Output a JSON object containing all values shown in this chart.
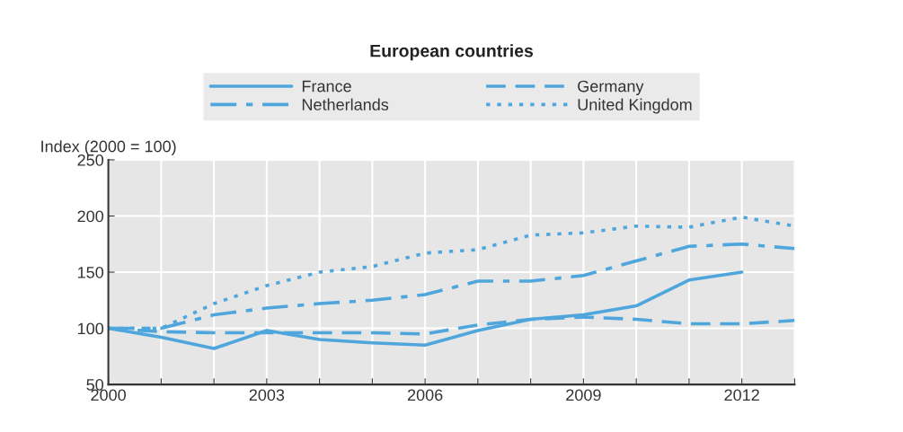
{
  "chart_data": {
    "type": "line",
    "title": "European countries",
    "ylabel": "Index (2000 = 100)",
    "x": [
      2000,
      2001,
      2002,
      2003,
      2004,
      2005,
      2006,
      2007,
      2008,
      2009,
      2010,
      2011,
      2012,
      2013
    ],
    "series": [
      {
        "name": "France",
        "color": "#4ea6dc",
        "line_style": "solid",
        "values": [
          100,
          92,
          82,
          98,
          90,
          87,
          85,
          98,
          108,
          112,
          120,
          143,
          150,
          null
        ]
      },
      {
        "name": "Germany",
        "color": "#4ea6dc",
        "line_style": "dashed",
        "values": [
          100,
          97,
          96,
          96,
          96,
          96,
          95,
          103,
          108,
          110,
          108,
          104,
          104,
          107
        ]
      },
      {
        "name": "Netherlands",
        "color": "#4ea6dc",
        "line_style": "dashdot",
        "values": [
          100,
          100,
          112,
          118,
          122,
          125,
          130,
          142,
          142,
          147,
          160,
          173,
          175,
          171
        ]
      },
      {
        "name": "United Kingdom",
        "color": "#4ea6dc",
        "line_style": "dotted",
        "values": [
          100,
          100,
          122,
          138,
          150,
          155,
          167,
          170,
          183,
          185,
          191,
          190,
          199,
          191
        ]
      }
    ],
    "xlim": [
      2000,
      2013
    ],
    "xticks": [
      2000,
      {
        "value": 2001,
        "label": null
      },
      {
        "value": 2002,
        "label": null
      },
      2003,
      {
        "value": 2004,
        "label": null
      },
      {
        "value": 2005,
        "label": null
      },
      2006,
      {
        "value": 2007,
        "label": null
      },
      {
        "value": 2008,
        "label": null
      },
      2009,
      {
        "value": 2010,
        "label": null
      },
      {
        "value": 2011,
        "label": null
      },
      2012,
      {
        "value": 2013,
        "label": null
      }
    ],
    "ylim": [
      50,
      250
    ],
    "yticks": [
      50,
      100,
      150,
      200,
      250
    ],
    "grid": true,
    "legend": "top",
    "marker": "none"
  }
}
